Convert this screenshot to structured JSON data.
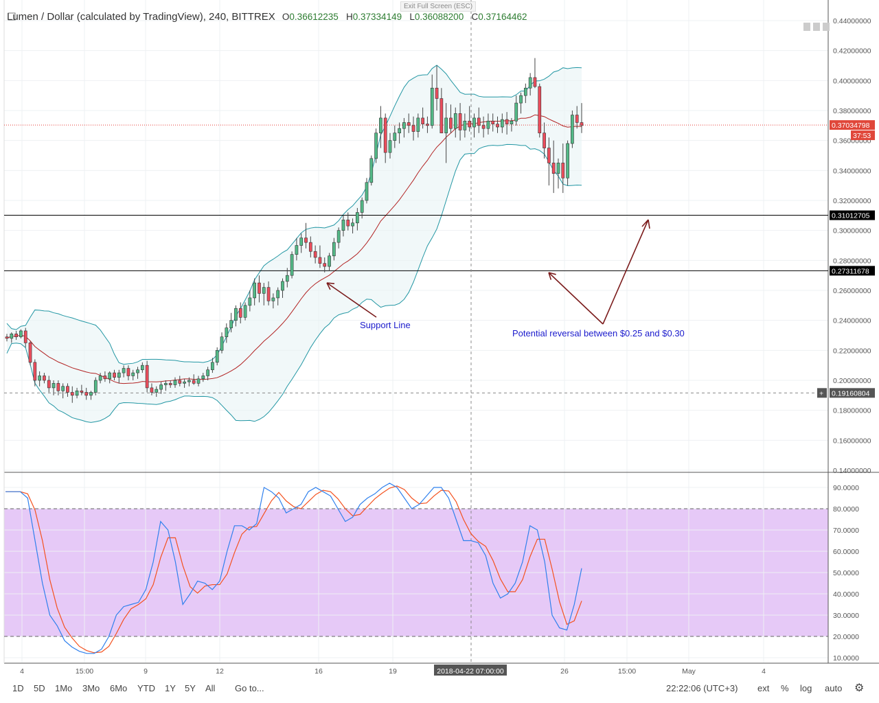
{
  "header": {
    "title": "Lumen / Dollar (calculated by TradingView), 240, BITTREX",
    "open_label": "O",
    "open": "0.36612235",
    "high_label": "H",
    "high": "0.37334149",
    "low_label": "L",
    "low": "0.36088200",
    "close_label": "C",
    "close": "0.37164462"
  },
  "exit_fullscreen": "Exit Full Screen (ESC)",
  "toolbar": {
    "ranges": [
      "1D",
      "5D",
      "1Mo",
      "3Mo",
      "6Mo",
      "YTD",
      "1Y",
      "5Y",
      "All"
    ],
    "goto": "Go to...",
    "time": "22:22:06 (UTC+3)",
    "ext": "ext",
    "percent": "%",
    "log": "log",
    "auto": "auto"
  },
  "annotations": {
    "support": "Support Line",
    "reversal": "Potential reversal between $0.25 and $0.30"
  },
  "colors": {
    "up": "#53b987",
    "down": "#eb4d5c",
    "bb": "#2196a3",
    "ma": "#b22222",
    "stoch_k": "#2f80ed",
    "stoch_d": "#f4511e",
    "zone": "#e6c9f7"
  },
  "chart_data": {
    "type": "candlestick",
    "price_axis": {
      "min": 0.14,
      "max": 0.44,
      "ticks": [
        "0.44000000",
        "0.42000000",
        "0.40000000",
        "0.38000000",
        "0.36000000",
        "0.34000000",
        "0.32000000",
        "0.30000000",
        "0.28000000",
        "0.26000000",
        "0.24000000",
        "0.22000000",
        "0.20000000",
        "0.18000000",
        "0.16000000",
        "0.14000000"
      ]
    },
    "x_axis": {
      "ticks": [
        "4",
        "15:00",
        "9",
        "12",
        "16",
        "19",
        "26",
        "15:00",
        "May",
        "4"
      ],
      "crosshair_label": "2018-04-22 07:00:00"
    },
    "levels": [
      {
        "value": 0.31012705,
        "label": "0.31012705"
      },
      {
        "value": 0.27311678,
        "label": "0.27311678"
      }
    ],
    "current_price": {
      "value": 0.37034798,
      "label": "0.37034798",
      "countdown": "37:53"
    },
    "crosshair_price": {
      "value": 0.1916,
      "label": "0.19160804"
    },
    "stoch_axis": {
      "min": 10,
      "max": 90,
      "ticks": [
        "90.0000",
        "80.0000",
        "70.0000",
        "60.0000",
        "50.0000",
        "40.0000",
        "30.0000",
        "20.0000",
        "10.0000"
      ],
      "upper": 80,
      "lower": 20
    },
    "candles": [
      [
        0.229,
        0.231,
        0.226,
        0.228
      ],
      [
        0.228,
        0.232,
        0.225,
        0.231
      ],
      [
        0.231,
        0.233,
        0.227,
        0.229
      ],
      [
        0.229,
        0.234,
        0.228,
        0.233
      ],
      [
        0.233,
        0.235,
        0.222,
        0.225
      ],
      [
        0.225,
        0.226,
        0.21,
        0.212
      ],
      [
        0.212,
        0.214,
        0.196,
        0.2
      ],
      [
        0.2,
        0.206,
        0.196,
        0.203
      ],
      [
        0.203,
        0.205,
        0.198,
        0.2
      ],
      [
        0.2,
        0.203,
        0.192,
        0.195
      ],
      [
        0.195,
        0.2,
        0.19,
        0.198
      ],
      [
        0.198,
        0.2,
        0.19,
        0.193
      ],
      [
        0.193,
        0.198,
        0.188,
        0.196
      ],
      [
        0.196,
        0.198,
        0.189,
        0.192
      ],
      [
        0.192,
        0.196,
        0.185,
        0.19
      ],
      [
        0.19,
        0.195,
        0.188,
        0.193
      ],
      [
        0.193,
        0.197,
        0.19,
        0.192
      ],
      [
        0.192,
        0.195,
        0.187,
        0.19
      ],
      [
        0.19,
        0.193,
        0.187,
        0.192
      ],
      [
        0.192,
        0.202,
        0.19,
        0.2
      ],
      [
        0.2,
        0.205,
        0.198,
        0.203
      ],
      [
        0.203,
        0.206,
        0.199,
        0.201
      ],
      [
        0.201,
        0.206,
        0.198,
        0.205
      ],
      [
        0.205,
        0.207,
        0.2,
        0.202
      ],
      [
        0.202,
        0.207,
        0.198,
        0.205
      ],
      [
        0.205,
        0.21,
        0.202,
        0.208
      ],
      [
        0.208,
        0.21,
        0.2,
        0.203
      ],
      [
        0.203,
        0.207,
        0.2,
        0.205
      ],
      [
        0.205,
        0.209,
        0.201,
        0.207
      ],
      [
        0.207,
        0.212,
        0.205,
        0.21
      ],
      [
        0.21,
        0.213,
        0.192,
        0.195
      ],
      [
        0.195,
        0.198,
        0.19,
        0.192
      ],
      [
        0.192,
        0.196,
        0.189,
        0.194
      ],
      [
        0.194,
        0.199,
        0.191,
        0.197
      ],
      [
        0.197,
        0.2,
        0.193,
        0.198
      ],
      [
        0.198,
        0.2,
        0.195,
        0.197
      ],
      [
        0.197,
        0.202,
        0.195,
        0.2
      ],
      [
        0.2,
        0.203,
        0.196,
        0.198
      ],
      [
        0.198,
        0.201,
        0.195,
        0.199
      ],
      [
        0.199,
        0.202,
        0.196,
        0.2
      ],
      [
        0.2,
        0.204,
        0.197,
        0.198
      ],
      [
        0.198,
        0.203,
        0.196,
        0.201
      ],
      [
        0.201,
        0.205,
        0.199,
        0.203
      ],
      [
        0.203,
        0.209,
        0.2,
        0.207
      ],
      [
        0.207,
        0.215,
        0.205,
        0.212
      ],
      [
        0.212,
        0.222,
        0.21,
        0.22
      ],
      [
        0.22,
        0.232,
        0.218,
        0.229
      ],
      [
        0.229,
        0.238,
        0.225,
        0.235
      ],
      [
        0.235,
        0.245,
        0.232,
        0.24
      ],
      [
        0.24,
        0.25,
        0.236,
        0.248
      ],
      [
        0.248,
        0.252,
        0.238,
        0.242
      ],
      [
        0.242,
        0.252,
        0.24,
        0.25
      ],
      [
        0.25,
        0.26,
        0.246,
        0.255
      ],
      [
        0.255,
        0.268,
        0.25,
        0.265
      ],
      [
        0.265,
        0.27,
        0.252,
        0.258
      ],
      [
        0.258,
        0.265,
        0.25,
        0.262
      ],
      [
        0.262,
        0.266,
        0.25,
        0.253
      ],
      [
        0.253,
        0.258,
        0.248,
        0.255
      ],
      [
        0.255,
        0.262,
        0.25,
        0.26
      ],
      [
        0.26,
        0.268,
        0.255,
        0.266
      ],
      [
        0.266,
        0.275,
        0.262,
        0.27
      ],
      [
        0.27,
        0.286,
        0.268,
        0.284
      ],
      [
        0.284,
        0.295,
        0.28,
        0.29
      ],
      [
        0.29,
        0.298,
        0.285,
        0.295
      ],
      [
        0.295,
        0.305,
        0.288,
        0.292
      ],
      [
        0.292,
        0.296,
        0.282,
        0.286
      ],
      [
        0.286,
        0.29,
        0.278,
        0.282
      ],
      [
        0.282,
        0.29,
        0.275,
        0.278
      ],
      [
        0.278,
        0.282,
        0.272,
        0.276
      ],
      [
        0.276,
        0.285,
        0.273,
        0.283
      ],
      [
        0.283,
        0.295,
        0.28,
        0.292
      ],
      [
        0.292,
        0.302,
        0.288,
        0.3
      ],
      [
        0.3,
        0.31,
        0.296,
        0.307
      ],
      [
        0.307,
        0.312,
        0.3,
        0.303
      ],
      [
        0.303,
        0.308,
        0.298,
        0.305
      ],
      [
        0.305,
        0.315,
        0.3,
        0.312
      ],
      [
        0.312,
        0.322,
        0.308,
        0.32
      ],
      [
        0.32,
        0.335,
        0.318,
        0.332
      ],
      [
        0.332,
        0.35,
        0.33,
        0.348
      ],
      [
        0.348,
        0.368,
        0.345,
        0.365
      ],
      [
        0.365,
        0.383,
        0.355,
        0.375
      ],
      [
        0.375,
        0.378,
        0.345,
        0.352
      ],
      [
        0.352,
        0.365,
        0.348,
        0.36
      ],
      [
        0.36,
        0.37,
        0.355,
        0.365
      ],
      [
        0.365,
        0.372,
        0.358,
        0.368
      ],
      [
        0.368,
        0.375,
        0.362,
        0.372
      ],
      [
        0.372,
        0.378,
        0.365,
        0.37
      ],
      [
        0.37,
        0.376,
        0.36,
        0.366
      ],
      [
        0.366,
        0.378,
        0.362,
        0.375
      ],
      [
        0.375,
        0.382,
        0.368,
        0.371
      ],
      [
        0.371,
        0.376,
        0.365,
        0.37
      ],
      [
        0.37,
        0.404,
        0.368,
        0.395
      ],
      [
        0.395,
        0.41,
        0.38,
        0.388
      ],
      [
        0.388,
        0.395,
        0.365,
        0.365
      ],
      [
        0.365,
        0.385,
        0.345,
        0.375
      ],
      [
        0.375,
        0.384,
        0.365,
        0.368
      ],
      [
        0.368,
        0.382,
        0.362,
        0.378
      ],
      [
        0.378,
        0.385,
        0.36,
        0.367
      ],
      [
        0.367,
        0.378,
        0.362,
        0.373
      ],
      [
        0.373,
        0.383,
        0.366,
        0.369
      ],
      [
        0.369,
        0.378,
        0.362,
        0.375
      ],
      [
        0.375,
        0.382,
        0.365,
        0.37
      ],
      [
        0.37,
        0.376,
        0.362,
        0.368
      ],
      [
        0.368,
        0.378,
        0.364,
        0.373
      ],
      [
        0.373,
        0.378,
        0.366,
        0.371
      ],
      [
        0.371,
        0.376,
        0.365,
        0.369
      ],
      [
        0.369,
        0.378,
        0.365,
        0.374
      ],
      [
        0.374,
        0.379,
        0.364,
        0.371
      ],
      [
        0.371,
        0.375,
        0.366,
        0.373
      ],
      [
        0.373,
        0.39,
        0.37,
        0.385
      ],
      [
        0.385,
        0.392,
        0.378,
        0.39
      ],
      [
        0.39,
        0.398,
        0.385,
        0.395
      ],
      [
        0.395,
        0.405,
        0.39,
        0.402
      ],
      [
        0.402,
        0.415,
        0.395,
        0.396
      ],
      [
        0.396,
        0.398,
        0.362,
        0.365
      ],
      [
        0.365,
        0.372,
        0.348,
        0.355
      ],
      [
        0.355,
        0.362,
        0.33,
        0.345
      ],
      [
        0.345,
        0.36,
        0.325,
        0.338
      ],
      [
        0.338,
        0.348,
        0.328,
        0.345
      ],
      [
        0.345,
        0.358,
        0.325,
        0.335
      ],
      [
        0.335,
        0.36,
        0.33,
        0.358
      ],
      [
        0.358,
        0.38,
        0.355,
        0.377
      ],
      [
        0.377,
        0.383,
        0.368,
        0.372
      ],
      [
        0.372,
        0.385,
        0.365,
        0.37
      ]
    ],
    "stoch_k": [
      88,
      88,
      88,
      85,
      65,
      45,
      30,
      25,
      18,
      15,
      13,
      12,
      12,
      14,
      20,
      30,
      34,
      35,
      36,
      42,
      55,
      74,
      70,
      55,
      35,
      40,
      46,
      45,
      42,
      46,
      60,
      72,
      72,
      70,
      73,
      90,
      88,
      85,
      78,
      80,
      82,
      88,
      90,
      88,
      86,
      80,
      74,
      76,
      82,
      85,
      87,
      90,
      92,
      90,
      85,
      80,
      82,
      86,
      90,
      90,
      85,
      75,
      65,
      65,
      64,
      58,
      45,
      38,
      40,
      45,
      55,
      72,
      70,
      55,
      30,
      24,
      23,
      35,
      52
    ]
  }
}
